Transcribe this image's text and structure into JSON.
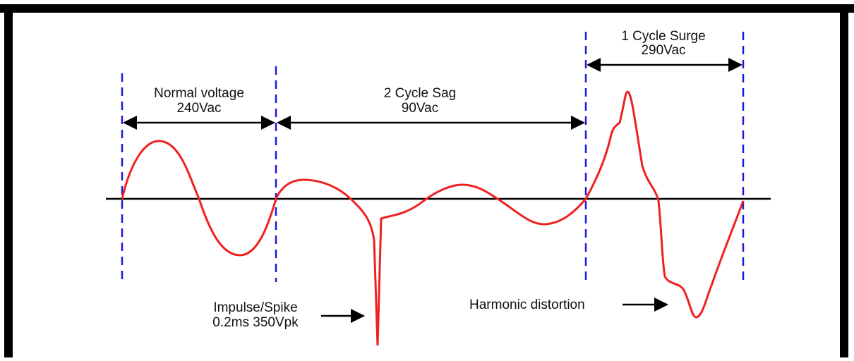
{
  "labels": {
    "normal": {
      "title": "Normal voltage",
      "value": "240Vac"
    },
    "sag": {
      "title": "2 Cycle Sag",
      "value": "90Vac"
    },
    "surge": {
      "title": "1 Cycle Surge",
      "value": "290Vac"
    },
    "spike": {
      "title": "Impulse/Spike",
      "value": "0.2ms 350Vpk"
    },
    "harmonic": {
      "title": "Harmonic distortion"
    }
  }
}
